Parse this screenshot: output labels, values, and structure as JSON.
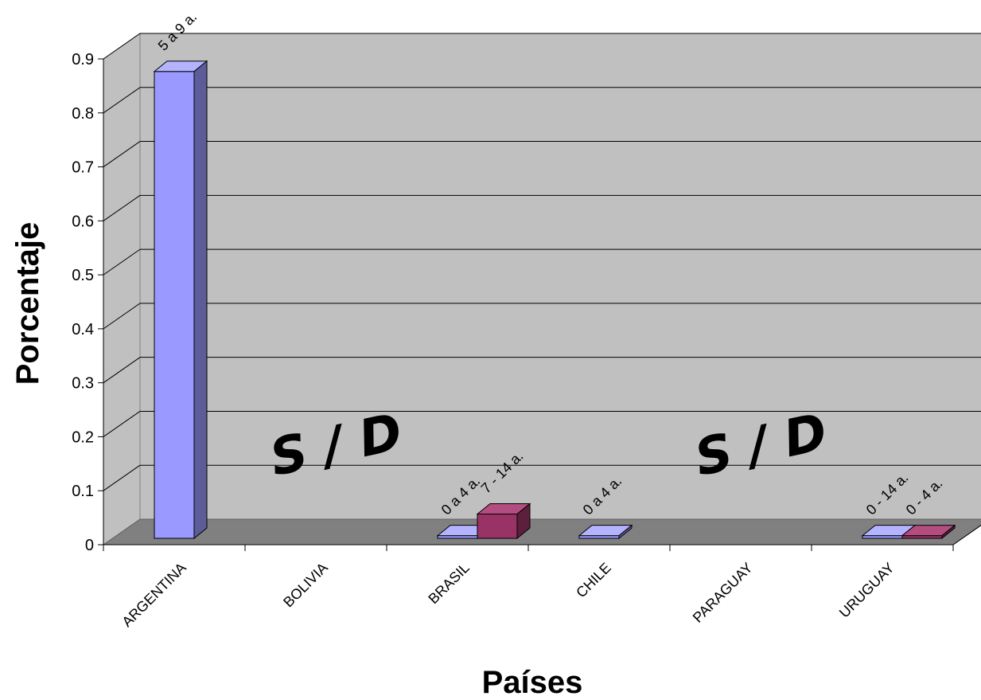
{
  "chart_data": {
    "type": "bar",
    "title": "",
    "xlabel": "Países",
    "ylabel": "Porcentaje",
    "ylim": [
      0,
      0.9
    ],
    "yticks": [
      "0",
      "0.1",
      "0.2",
      "0.3",
      "0.4",
      "0.5",
      "0.6",
      "0.7",
      "0.8",
      "0.9"
    ],
    "categories": [
      "ARGENTINA",
      "BOLIVIA",
      "BRASIL",
      "CHILE",
      "PARAGUAY",
      "URUGUAY"
    ],
    "series": [
      {
        "values": [
          0.865,
          null,
          0.005,
          0.005,
          null,
          0.005
        ],
        "labels": [
          "5 a 9 a.",
          "",
          "0 a 4 a.",
          "0 a 4 a.",
          "",
          "0 - 14 a."
        ]
      },
      {
        "values": [
          null,
          null,
          0.045,
          null,
          null,
          0.005
        ],
        "labels": [
          "",
          "",
          "7 - 14 a.",
          "",
          "",
          "0 - 4 a."
        ]
      }
    ],
    "annotations": [
      {
        "category": "BOLIVIA",
        "text": "S / D"
      },
      {
        "category": "PARAGUAY",
        "text": "S / D"
      }
    ],
    "grid": true,
    "legend": "none",
    "colors": {
      "series1_front": "#9999ff",
      "series2_front": "#993366",
      "wall": "#c0c0c0",
      "floor": "#808080"
    }
  }
}
